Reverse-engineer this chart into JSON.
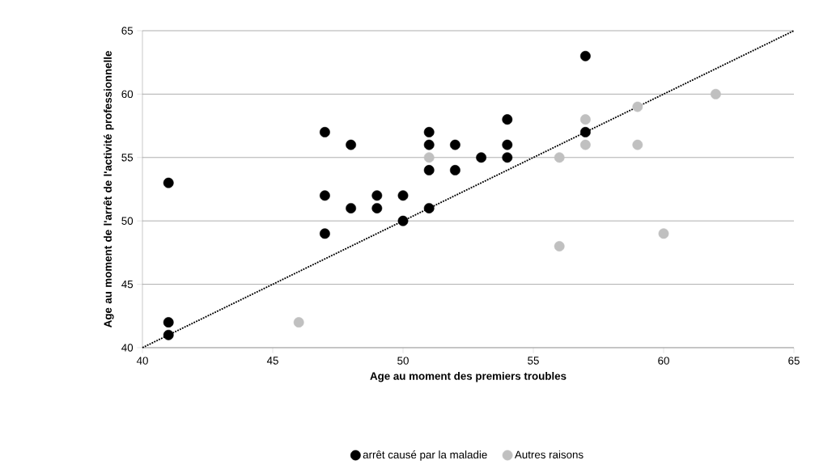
{
  "chart_data": {
    "type": "scatter",
    "xlabel": "Age au moment des premiers troubles",
    "ylabel": "Age au moment de l'arrêt de l'activité professionnelle",
    "xlim": [
      40,
      65
    ],
    "ylim": [
      40,
      65
    ],
    "xticks": [
      40,
      45,
      50,
      55,
      60,
      65
    ],
    "yticks": [
      40,
      45,
      50,
      55,
      60,
      65
    ],
    "grid": "y",
    "legend": "bottom",
    "marker": "circle",
    "series": [
      {
        "name": "arrêt causé par la maladie",
        "color": "#000000",
        "x": [
          41,
          41,
          41,
          47,
          47,
          47,
          48,
          48,
          49,
          49,
          50,
          50,
          51,
          51,
          51,
          51,
          52,
          52,
          53,
          54,
          54,
          54,
          57,
          57
        ],
        "values": [
          53,
          42,
          41,
          57,
          52,
          49,
          56,
          51,
          52,
          51,
          52,
          50,
          57,
          56,
          54,
          51,
          56,
          54,
          55,
          58,
          56,
          55,
          63,
          57
        ]
      },
      {
        "name": "Autres raisons",
        "color": "#c0c0c0",
        "x": [
          46,
          51,
          56,
          56,
          57,
          57,
          59,
          59,
          60,
          62
        ],
        "values": [
          42,
          55,
          55,
          48,
          58,
          56,
          59,
          56,
          49,
          60
        ]
      },
      {
        "type": "line",
        "color": "#000000",
        "line_style": "dotted",
        "marker": "none",
        "x": [
          40,
          65
        ],
        "values": [
          40,
          65
        ]
      }
    ]
  }
}
